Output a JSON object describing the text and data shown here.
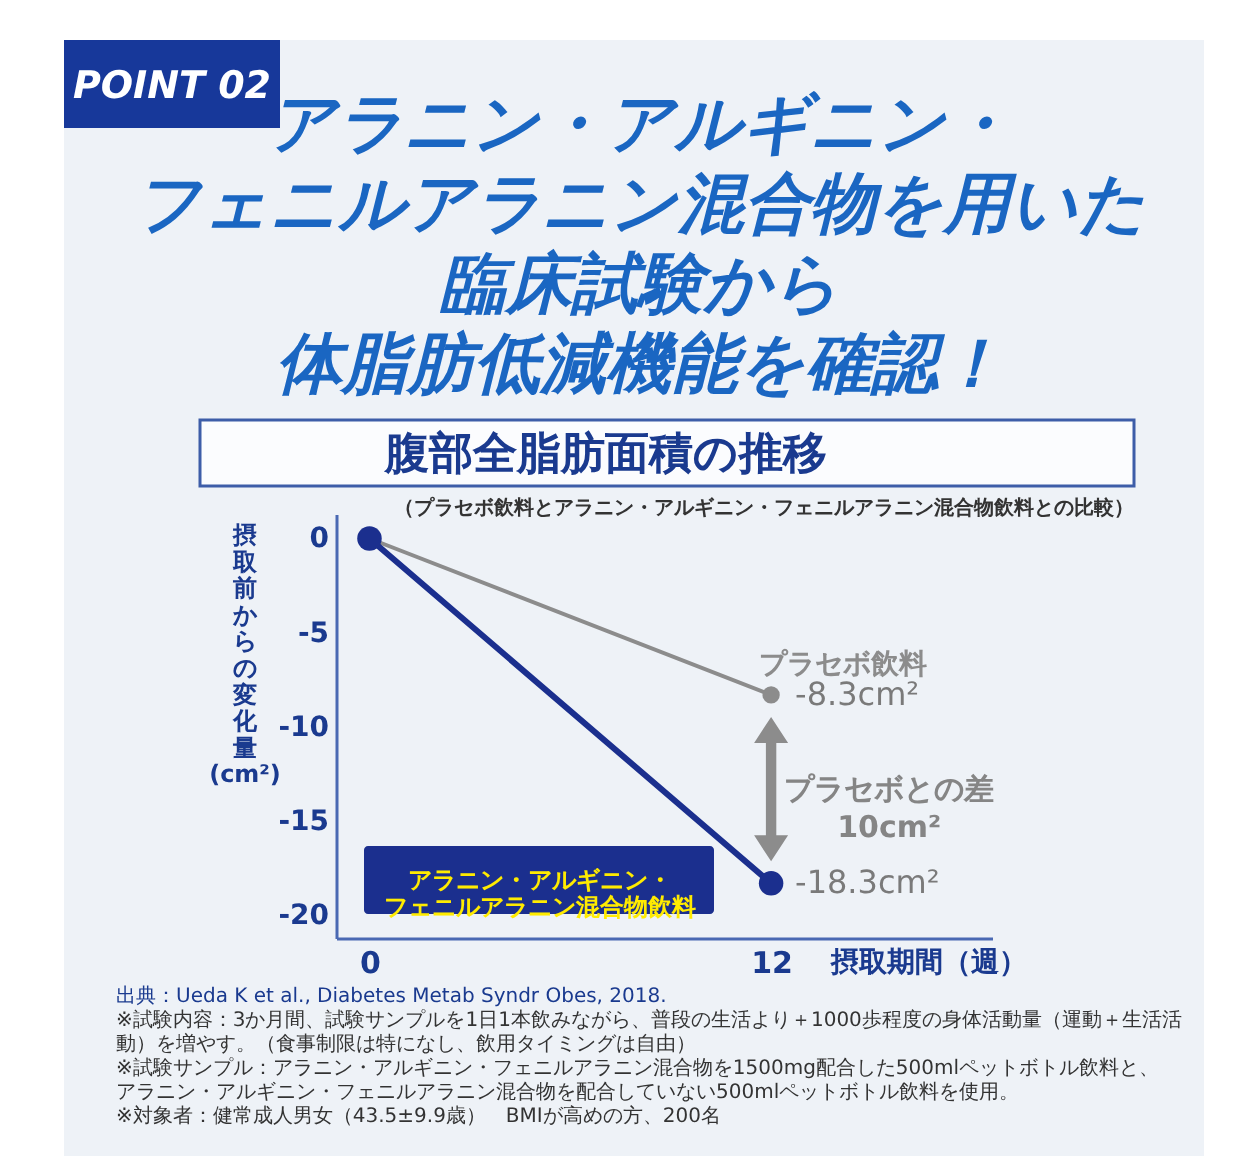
{
  "chart_data": {
    "type": "line",
    "title": "腹部全脂肪面積の推移",
    "subtitle": "（プラセボ飲料とアラニン・アルギニン・フェニルアラニン混合物飲料との比較）",
    "xlabel": "摂取期間（週）",
    "ylabel": "摂取前からの変化量\n(cm²)",
    "x": [
      0,
      12
    ],
    "series": [
      {
        "name": "プラセボ飲料",
        "color": "#8c8c8c",
        "values": [
          0,
          -8.3
        ],
        "value_labels": [
          null,
          "-8.3cm²"
        ]
      },
      {
        "name": "アラニン・アルギニン・フェニルアラニン混合物飲料",
        "color": "#1b2f8e",
        "values": [
          0,
          -18.3
        ],
        "value_labels": [
          null,
          "-18.3cm²"
        ]
      }
    ],
    "xlim": [
      -1,
      18.6
    ],
    "xticks": [
      0,
      12
    ],
    "ylim": [
      -21.2,
      1.3
    ],
    "yticks": [
      0,
      -5,
      -10,
      -15,
      -20
    ],
    "marker": "circle",
    "line_style": "solid",
    "annotations": [
      "POINT 02",
      "アラニン・アルギニン・",
      "フェニルアラニン混合物を用いた",
      "臨床試験から",
      "体脂肪低減機能を確認！",
      "プラセボとの差\n10cm²",
      "出典：Ueda K et al., Diabetes Metab Syndr Obes, 2018.",
      "※試験内容：3か月間、試験サンプルを1日1本飲みながら、普段の生活より＋1000歩程度の身体活動量（運動＋生活活動）を増やす。（食事制限は特になし、飲用タイミングは自由）",
      "※試験サンプル：アラニン・アルギニン・フェニルアラニン混合物を1500mg配合した500mlペットボトル飲料と、アラニン・アルギニン・フェニルアラニン混合物を配合していない500mlペットボトル飲料を使用。",
      "※対象者：健常成人男女（43.5±9.9歳）　BMIが高めの方、200名"
    ]
  }
}
